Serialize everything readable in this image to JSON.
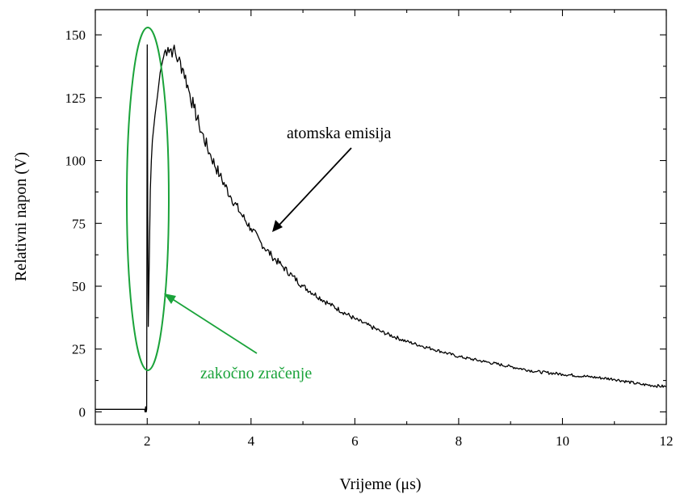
{
  "chart_data": {
    "type": "line",
    "xlabel": "Vrijeme (μs)",
    "ylabel": "Relativni napon (V)",
    "xlim": [
      1,
      12
    ],
    "ylim": [
      -5,
      160
    ],
    "x_ticks": [
      2,
      4,
      6,
      8,
      10,
      12
    ],
    "y_ticks": [
      0,
      25,
      50,
      75,
      100,
      125,
      150
    ],
    "x_tick_labels": [
      "2",
      "4",
      "6",
      "8",
      "10",
      "12"
    ],
    "y_tick_labels": [
      "0",
      "25",
      "50",
      "75",
      "100",
      "125",
      "150"
    ],
    "grid": false,
    "legend": "none",
    "series": [
      {
        "color": "#000000",
        "x": [
          1.0,
          1.95,
          1.96,
          1.97,
          1.98,
          1.99,
          2.0,
          2.01,
          2.02,
          2.04,
          2.06,
          2.08,
          2.1,
          2.15,
          2.2,
          2.25,
          2.3,
          2.35,
          2.4,
          2.5,
          2.6,
          2.7,
          2.8,
          2.9,
          3.0,
          3.2,
          3.4,
          3.6,
          3.8,
          4.0,
          4.2,
          4.4,
          4.6,
          4.8,
          5.0,
          5.5,
          6.0,
          6.5,
          7.0,
          7.5,
          8.0,
          8.5,
          9.0,
          9.5,
          10.0,
          10.5,
          11.0,
          11.5,
          12.0
        ],
        "y": [
          1,
          1,
          0,
          2,
          0,
          1,
          146,
          80,
          34,
          60,
          88,
          100,
          108,
          118,
          126,
          135,
          140,
          144,
          145,
          144,
          140,
          136,
          128,
          121,
          114,
          103,
          94,
          86,
          79,
          73,
          67,
          62,
          58,
          54,
          50,
          43,
          37,
          32,
          28,
          25,
          22,
          20,
          18,
          16,
          15,
          14,
          13,
          11,
          10
        ]
      }
    ],
    "annotations": [
      {
        "text": "atomska emisija",
        "color": "#000000",
        "arrow_to": [
          4.3,
          71
        ]
      },
      {
        "text": "zakočno zračenje",
        "color": "#1aa33a",
        "arrow_to": [
          2.35,
          47
        ]
      }
    ]
  }
}
